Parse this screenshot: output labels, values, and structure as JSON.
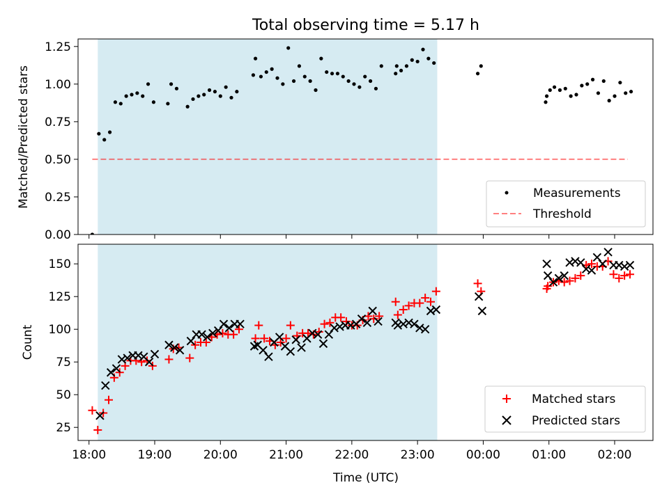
{
  "title": "Total observing time = 5.17 h",
  "colors": {
    "shade": "#add8e6",
    "measurement": "#000000",
    "threshold": "#ff0000",
    "matched": "#ff0000",
    "predicted": "#000000"
  },
  "chart_data": [
    {
      "type": "scatter",
      "title": "Total observing time = 5.17 h",
      "xlabel": "",
      "ylabel": "Matched/Predicted stars",
      "xlim": [
        "17:50",
        "02:35"
      ],
      "ylim": [
        0,
        1.3
      ],
      "yticks": [
        "0.00",
        "0.25",
        "0.50",
        "0.75",
        "1.00",
        "1.25"
      ],
      "shaded_region": {
        "from": "18:08",
        "to": "23:18"
      },
      "legend": {
        "position": "lower right",
        "entries": [
          "Measurements",
          "Threshold"
        ]
      },
      "threshold": {
        "name": "Threshold",
        "y": 0.5,
        "x_from": "18:03",
        "x_to": "02:12",
        "style": "dashed"
      },
      "series": [
        {
          "name": "Measurements",
          "x": [
            "18:03",
            "18:09",
            "18:14",
            "18:19",
            "18:24",
            "18:29",
            "18:34",
            "18:39",
            "18:44",
            "18:49",
            "18:54",
            "18:59",
            "19:12",
            "19:15",
            "19:20",
            "19:30",
            "19:35",
            "19:40",
            "19:45",
            "19:50",
            "19:55",
            "20:00",
            "20:05",
            "20:10",
            "20:15",
            "20:30",
            "20:32",
            "20:37",
            "20:42",
            "20:47",
            "20:52",
            "20:57",
            "21:02",
            "21:07",
            "21:12",
            "21:17",
            "21:22",
            "21:27",
            "21:32",
            "21:37",
            "21:42",
            "21:47",
            "21:52",
            "21:57",
            "22:02",
            "22:07",
            "22:12",
            "22:17",
            "22:22",
            "22:27",
            "22:40",
            "22:41",
            "22:45",
            "22:50",
            "22:55",
            "23:00",
            "23:05",
            "23:10",
            "23:15",
            "23:55",
            "23:58",
            "00:57",
            "00:58",
            "01:01",
            "01:05",
            "01:10",
            "01:15",
            "01:20",
            "01:25",
            "01:30",
            "01:35",
            "01:40",
            "01:45",
            "01:50",
            "01:55",
            "02:00",
            "02:05",
            "02:10",
            "02:15"
          ],
          "y": [
            0.0,
            0.67,
            0.63,
            0.68,
            0.88,
            0.87,
            0.92,
            0.93,
            0.94,
            0.92,
            1.0,
            0.88,
            0.87,
            1.0,
            0.97,
            0.85,
            0.9,
            0.92,
            0.93,
            0.96,
            0.95,
            0.92,
            0.98,
            0.91,
            0.95,
            1.06,
            1.17,
            1.05,
            1.08,
            1.1,
            1.04,
            1.0,
            1.24,
            1.02,
            1.12,
            1.05,
            1.02,
            0.96,
            1.17,
            1.08,
            1.07,
            1.07,
            1.05,
            1.02,
            1.0,
            0.98,
            1.05,
            1.02,
            0.97,
            1.12,
            1.07,
            1.12,
            1.09,
            1.12,
            1.16,
            1.15,
            1.23,
            1.17,
            1.14,
            1.07,
            1.12,
            0.88,
            0.92,
            0.96,
            0.98,
            0.96,
            0.97,
            0.92,
            0.93,
            0.99,
            1.0,
            1.03,
            0.94,
            1.02,
            0.89,
            0.92,
            1.01,
            0.94,
            0.95
          ]
        }
      ]
    },
    {
      "type": "scatter",
      "title": "",
      "xlabel": "Time (UTC)",
      "ylabel": "Count",
      "xlim": [
        "17:50",
        "02:35"
      ],
      "ylim": [
        15,
        165
      ],
      "yticks": [
        "25",
        "50",
        "75",
        "100",
        "125",
        "150"
      ],
      "xticks": [
        "18:00",
        "19:00",
        "20:00",
        "21:00",
        "22:00",
        "23:00",
        "00:00",
        "01:00",
        "02:00"
      ],
      "shaded_region": {
        "from": "18:08",
        "to": "23:18"
      },
      "legend": {
        "position": "lower right",
        "entries": [
          "Matched stars",
          "Predicted stars"
        ]
      },
      "series": [
        {
          "name": "Matched stars",
          "marker": "plus",
          "x": [
            "18:03",
            "18:08",
            "18:13",
            "18:18",
            "18:23",
            "18:28",
            "18:33",
            "18:38",
            "18:43",
            "18:48",
            "18:53",
            "18:58",
            "19:13",
            "19:17",
            "19:22",
            "19:32",
            "19:37",
            "19:42",
            "19:47",
            "19:52",
            "19:57",
            "20:02",
            "20:07",
            "20:12",
            "20:17",
            "20:32",
            "20:35",
            "20:40",
            "20:45",
            "20:50",
            "20:55",
            "21:00",
            "21:04",
            "21:10",
            "21:15",
            "21:20",
            "21:25",
            "21:30",
            "21:35",
            "21:40",
            "21:45",
            "21:50",
            "21:55",
            "22:00",
            "22:05",
            "22:10",
            "22:15",
            "22:20",
            "22:25",
            "22:40",
            "22:42",
            "22:47",
            "22:52",
            "22:57",
            "23:02",
            "23:07",
            "23:12",
            "23:17",
            "23:55",
            "23:58",
            "00:58",
            "00:59",
            "01:04",
            "01:09",
            "01:14",
            "01:19",
            "01:24",
            "01:29",
            "01:34",
            "01:39",
            "01:44",
            "01:49",
            "01:54",
            "01:59",
            "02:04",
            "02:09",
            "02:14"
          ],
          "y": [
            38,
            23,
            36,
            46,
            63,
            67,
            72,
            76,
            76,
            75,
            76,
            72,
            77,
            85,
            86,
            78,
            88,
            90,
            90,
            94,
            96,
            97,
            96,
            96,
            100,
            93,
            103,
            93,
            91,
            88,
            90,
            93,
            103,
            95,
            97,
            97,
            96,
            98,
            104,
            105,
            109,
            109,
            106,
            103,
            103,
            107,
            110,
            108,
            110,
            121,
            111,
            115,
            118,
            120,
            120,
            124,
            121,
            129,
            135,
            129,
            131,
            133,
            136,
            137,
            136,
            137,
            139,
            141,
            149,
            150,
            148,
            148,
            152,
            142,
            139,
            141,
            142
          ]
        },
        {
          "name": "Predicted stars",
          "marker": "x",
          "x": [
            "18:10",
            "18:15",
            "18:20",
            "18:25",
            "18:30",
            "18:35",
            "18:40",
            "18:45",
            "18:50",
            "18:55",
            "19:00",
            "19:13",
            "19:18",
            "19:23",
            "19:33",
            "19:38",
            "19:43",
            "19:48",
            "19:53",
            "19:58",
            "20:03",
            "20:08",
            "20:13",
            "20:18",
            "20:31",
            "20:34",
            "20:39",
            "20:44",
            "20:49",
            "20:54",
            "20:59",
            "21:04",
            "21:09",
            "21:14",
            "21:19",
            "21:24",
            "21:29",
            "21:34",
            "21:39",
            "21:44",
            "21:49",
            "21:54",
            "21:59",
            "22:04",
            "22:09",
            "22:14",
            "22:19",
            "22:24",
            "22:40",
            "22:42",
            "22:47",
            "22:52",
            "22:57",
            "23:02",
            "23:07",
            "23:12",
            "23:17",
            "23:56",
            "23:59",
            "00:58",
            "00:59",
            "01:04",
            "01:09",
            "01:14",
            "01:19",
            "01:24",
            "01:29",
            "01:34",
            "01:39",
            "01:44",
            "01:49",
            "01:54",
            "01:59",
            "02:04",
            "02:09",
            "02:14"
          ],
          "y": [
            34,
            57,
            67,
            70,
            77,
            78,
            80,
            80,
            79,
            75,
            81,
            88,
            86,
            84,
            91,
            96,
            96,
            94,
            97,
            99,
            104,
            101,
            104,
            104,
            87,
            88,
            84,
            79,
            90,
            94,
            87,
            83,
            92,
            86,
            93,
            97,
            96,
            89,
            96,
            101,
            102,
            103,
            103,
            104,
            108,
            105,
            114,
            106,
            105,
            103,
            104,
            105,
            104,
            101,
            100,
            114,
            115,
            125,
            114,
            150,
            141,
            136,
            139,
            141,
            151,
            152,
            151,
            146,
            145,
            155,
            150,
            159,
            149,
            149,
            148,
            149
          ]
        }
      ]
    }
  ]
}
